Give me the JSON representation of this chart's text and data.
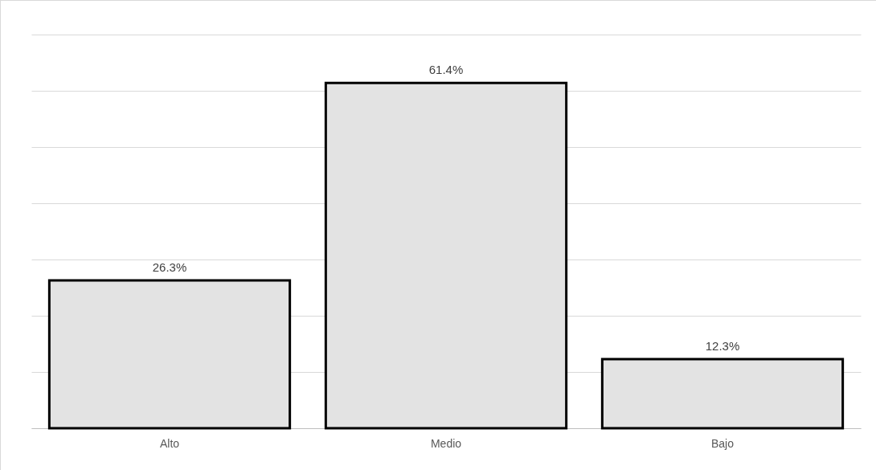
{
  "chart_data": {
    "type": "bar",
    "categories": [
      "Alto",
      "Medio",
      "Bajo"
    ],
    "values": [
      26.3,
      61.4,
      12.3
    ],
    "value_labels": [
      "26.3%",
      "61.4%",
      "12.3%"
    ],
    "color": "#e3e3e3",
    "ylim": [
      0,
      70
    ],
    "yticks": [
      {
        "value": 0,
        "label": null
      },
      {
        "value": 10,
        "label": null
      },
      {
        "value": 20,
        "label": null
      },
      {
        "value": 30,
        "label": null
      },
      {
        "value": 40,
        "label": null
      },
      {
        "value": 50,
        "label": null
      },
      {
        "value": 60,
        "label": null
      },
      {
        "value": 70,
        "label": null
      }
    ],
    "grid": "y",
    "tick_labels": "x"
  }
}
